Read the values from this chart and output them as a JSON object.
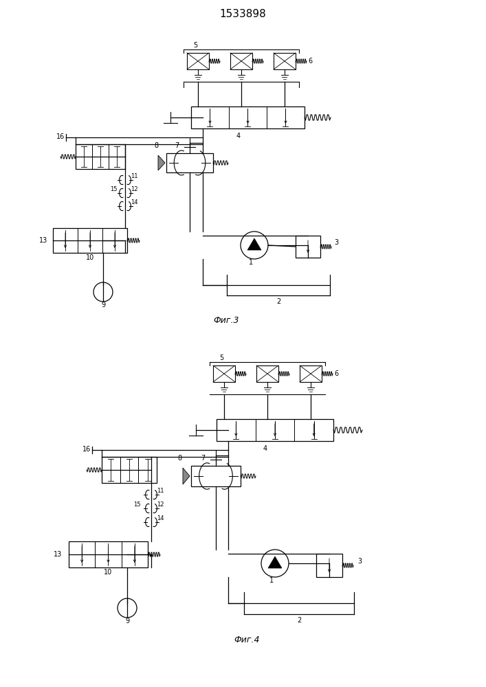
{
  "title": "1533898",
  "fig3_label": "Фиг.3",
  "fig4_label": "Фиг.4",
  "bg_color": "#ffffff",
  "lw": 0.9
}
